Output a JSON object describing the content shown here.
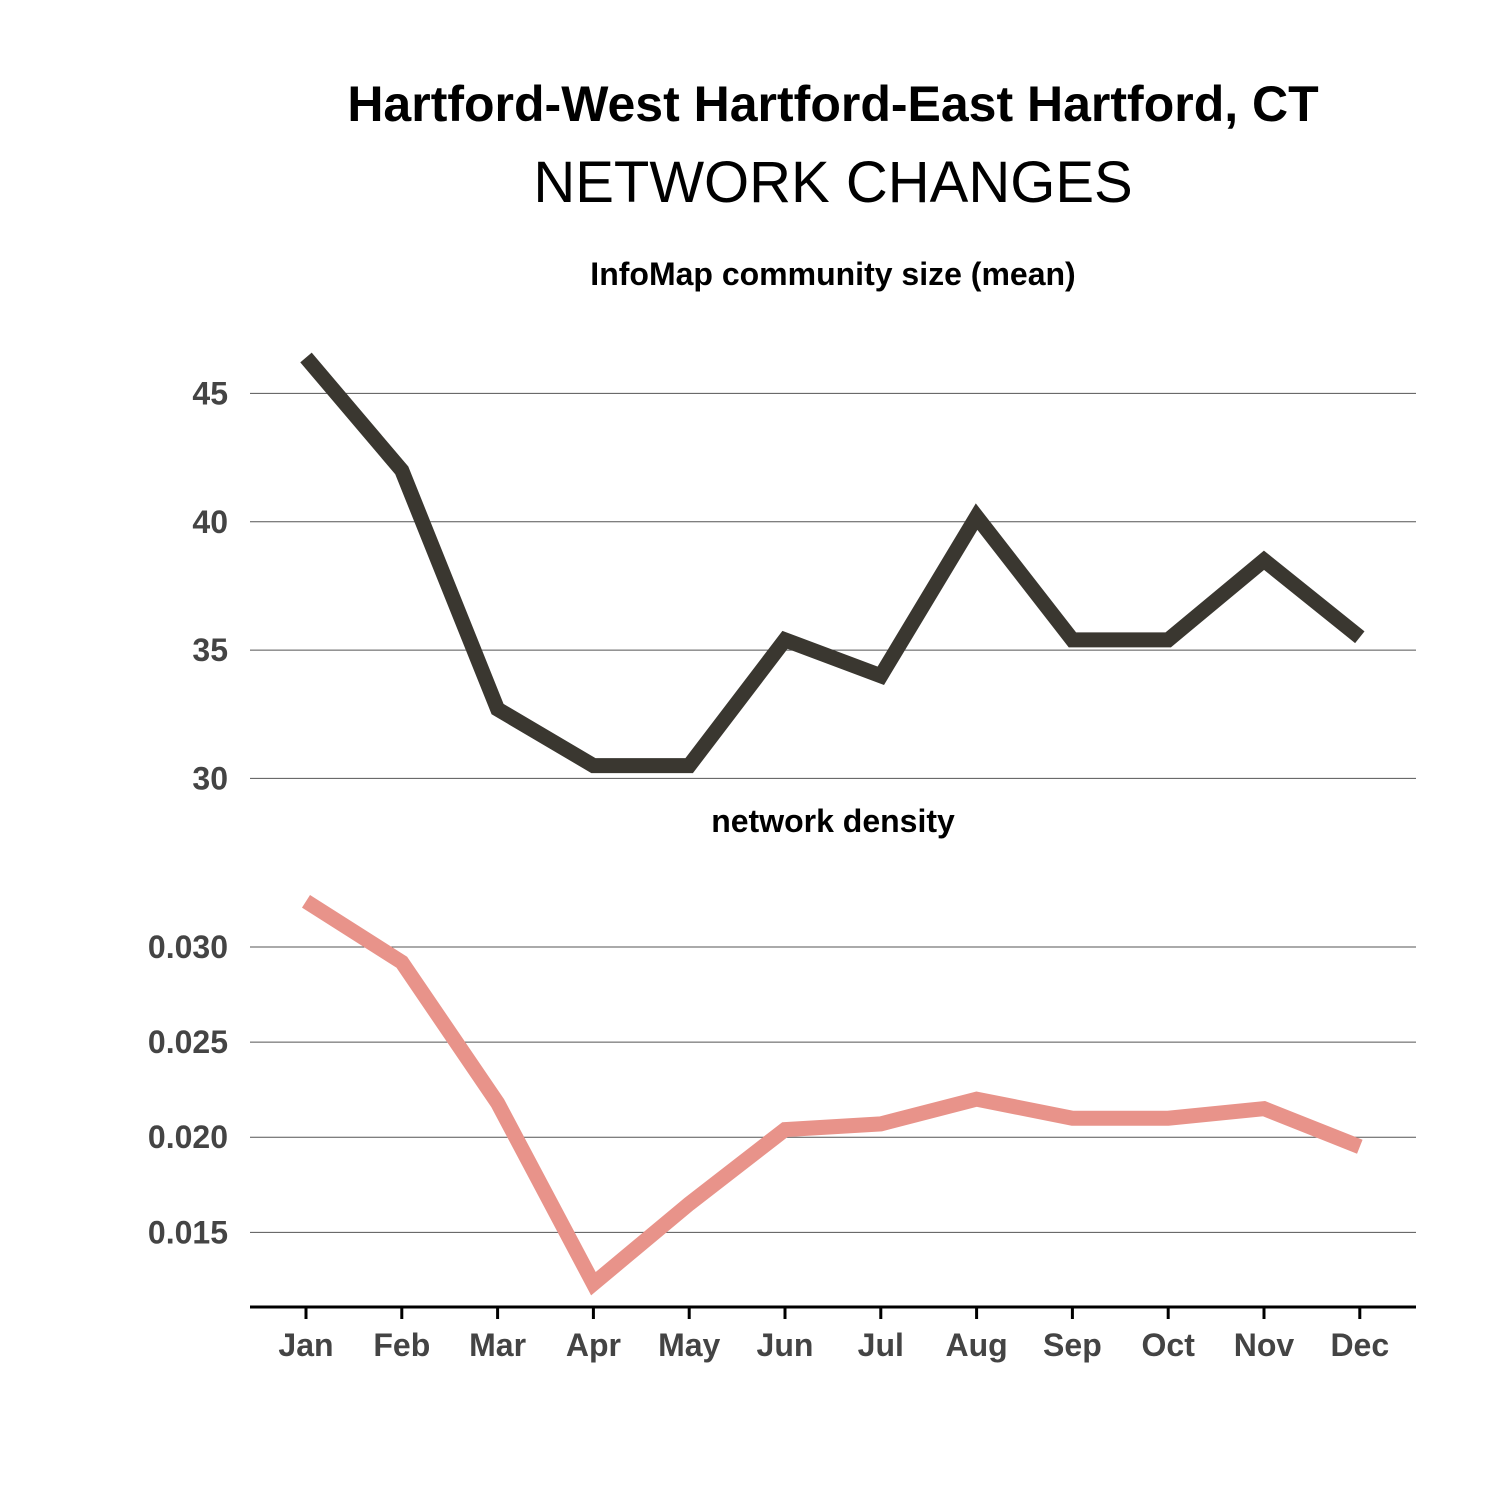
{
  "header": {
    "title": "Hartford-West Hartford-East Hartford, CT",
    "subtitle": "NETWORK CHANGES"
  },
  "chart_data": [
    {
      "type": "line",
      "title": "InfoMap community size (mean)",
      "categories": [
        "Jan",
        "Feb",
        "Mar",
        "Apr",
        "May",
        "Jun",
        "Jul",
        "Aug",
        "Sep",
        "Oct",
        "Nov",
        "Dec"
      ],
      "series": [
        {
          "values": [
            46.4,
            42.0,
            32.7,
            30.5,
            30.5,
            35.4,
            34.0,
            40.2,
            35.4,
            35.4,
            38.5,
            35.5
          ],
          "color": "#3a3730"
        }
      ],
      "yticks": [
        30,
        35,
        40,
        45
      ],
      "ytick_labels": [
        "30",
        "35",
        "40",
        "45"
      ],
      "ylim": [
        29.9,
        47.9
      ],
      "grid": true
    },
    {
      "type": "line",
      "title": "network density",
      "categories": [
        "Jan",
        "Feb",
        "Mar",
        "Apr",
        "May",
        "Jun",
        "Jul",
        "Aug",
        "Sep",
        "Oct",
        "Nov",
        "Dec"
      ],
      "series": [
        {
          "values": [
            0.0324,
            0.0292,
            0.0218,
            0.0123,
            0.0165,
            0.0204,
            0.0207,
            0.022,
            0.021,
            0.021,
            0.0215,
            0.0195
          ],
          "color": "#e8938a"
        }
      ],
      "yticks": [
        0.015,
        0.02,
        0.025,
        0.03
      ],
      "ytick_labels": [
        "0.015",
        "0.020",
        "0.025",
        "0.030"
      ],
      "ylim": [
        0.0116,
        0.0341
      ],
      "grid": true
    }
  ]
}
